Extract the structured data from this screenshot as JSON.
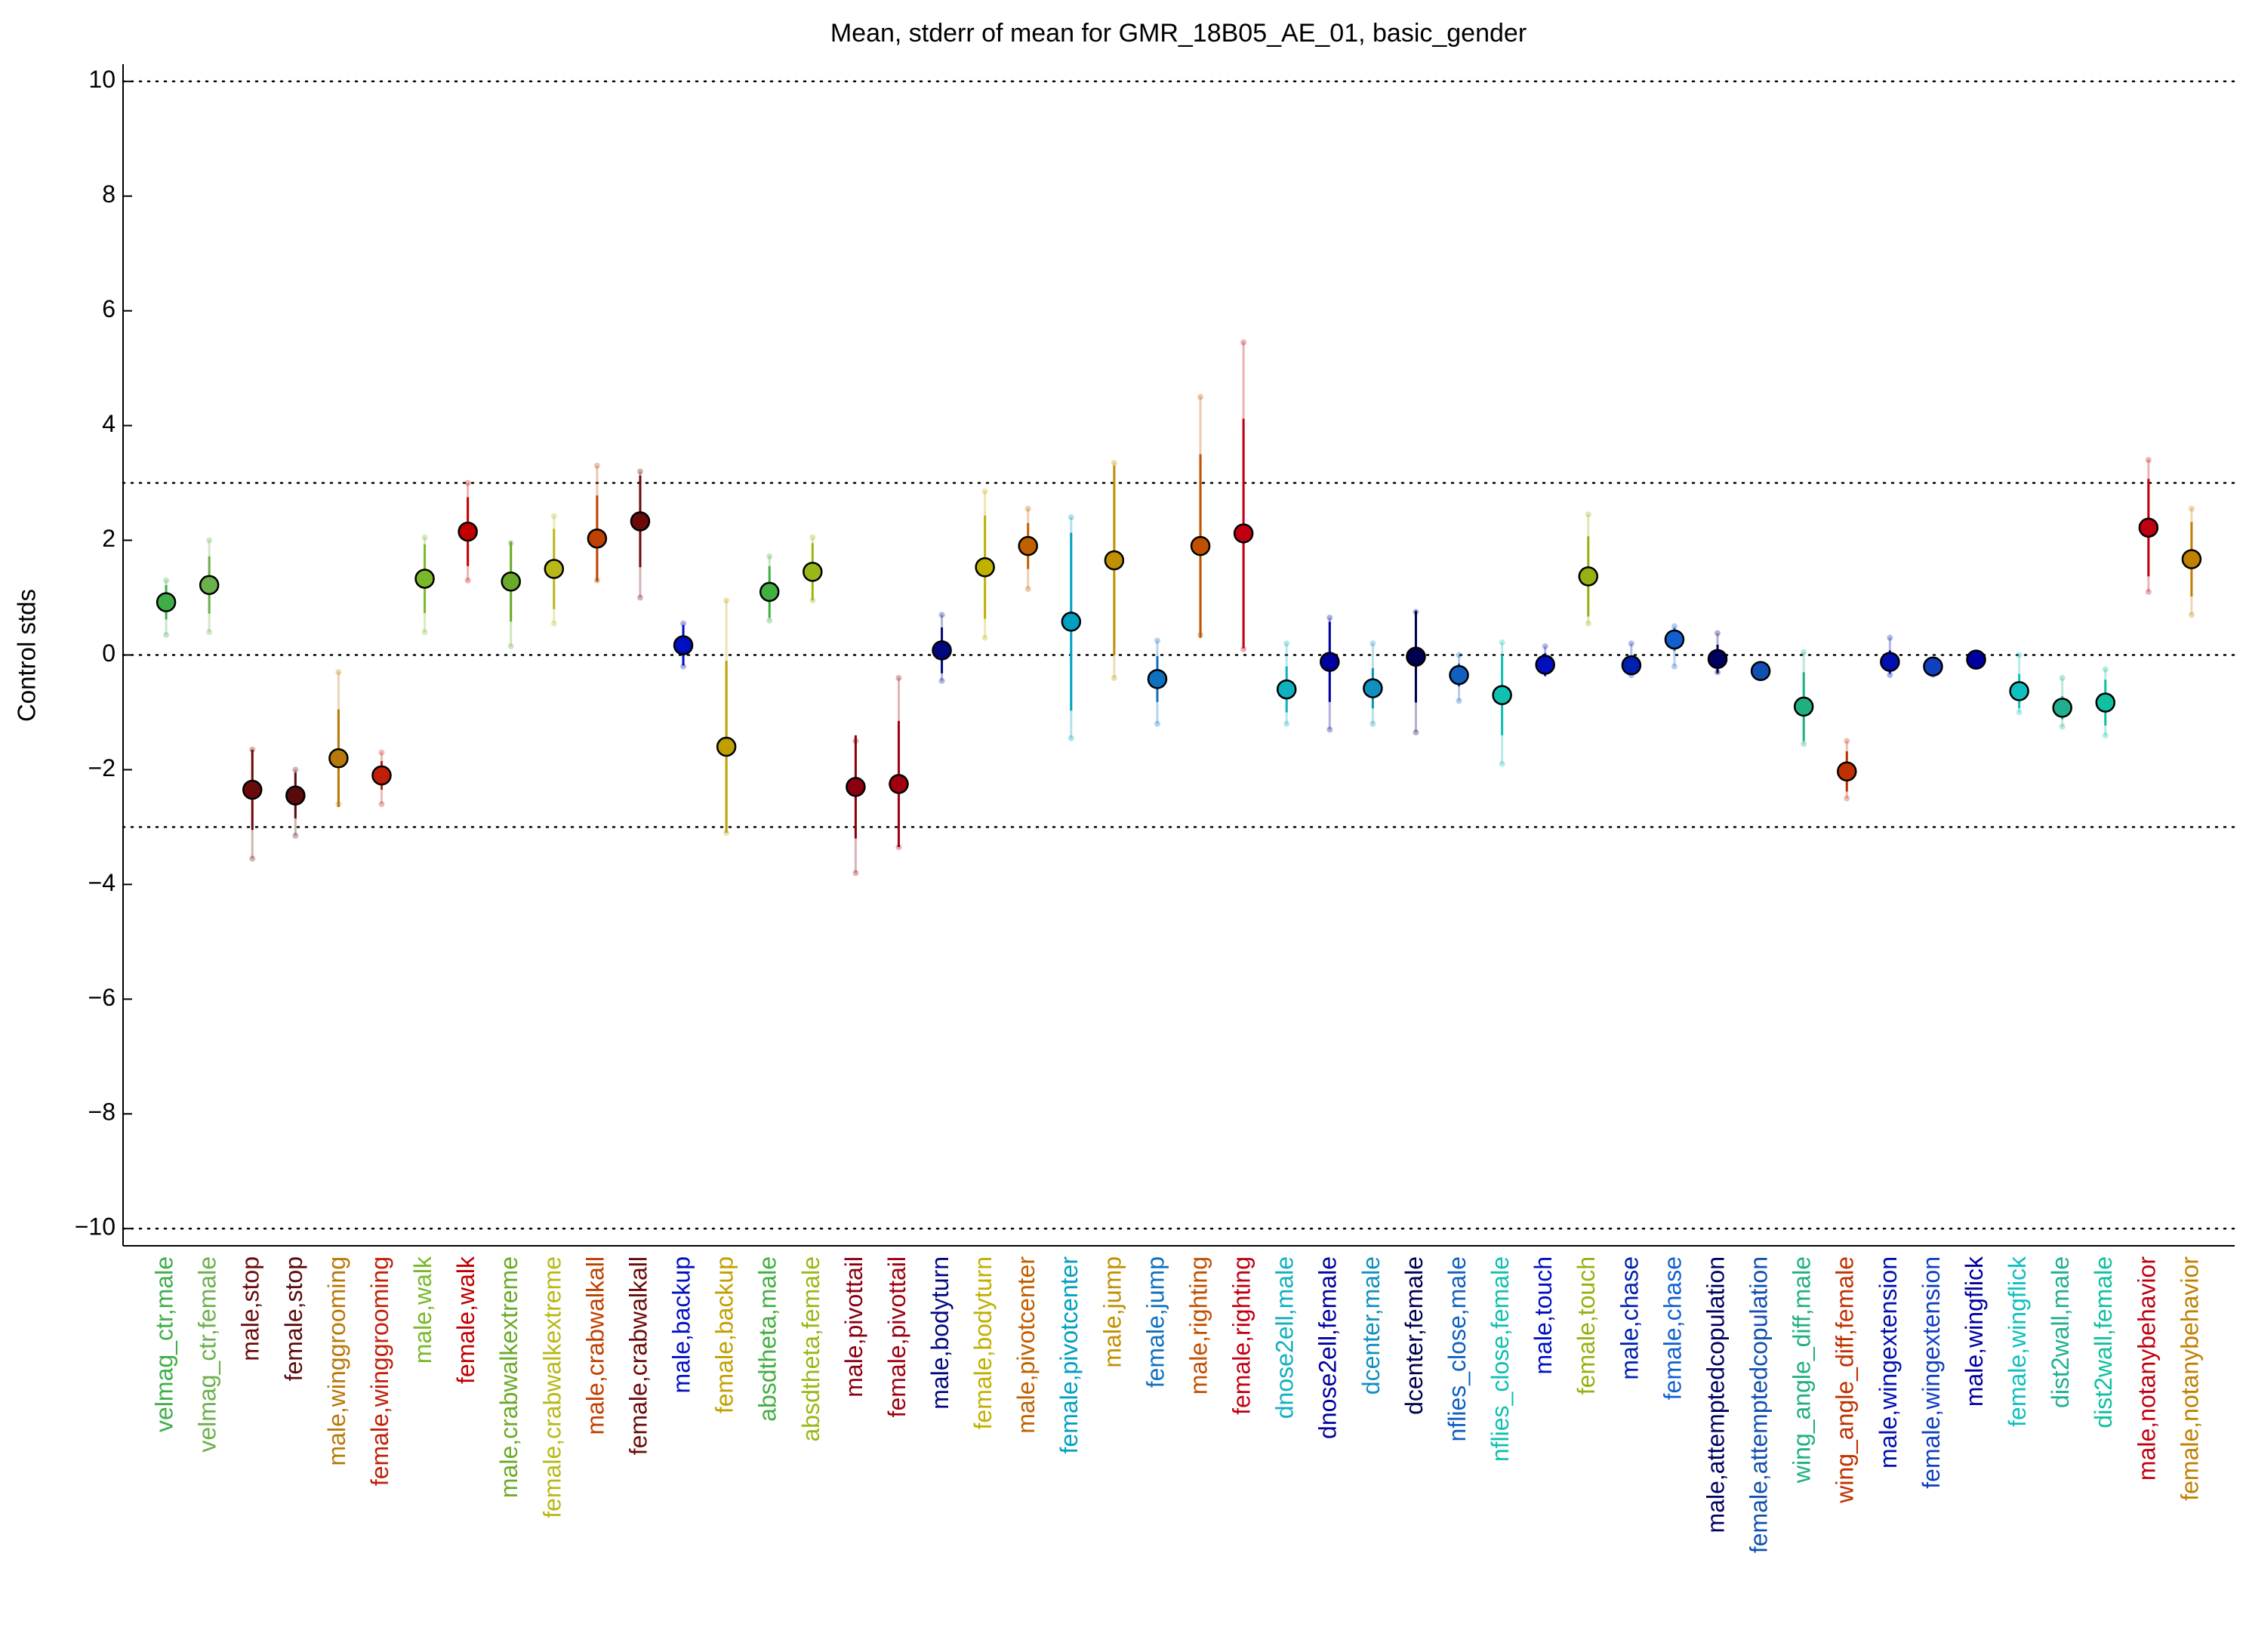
{
  "chart_data": {
    "type": "errorbar",
    "title": "Mean, stderr of mean for GMR_18B05_AE_01, basic_gender",
    "y_label": "Control stds",
    "categories": [
      "velmag_ctr,male",
      "velmag_ctr,female",
      "male,stop",
      "female,stop",
      "male,winggrooming",
      "female,winggrooming",
      "male,walk",
      "female,walk",
      "male,crabwalkextreme",
      "female,crabwalkextreme",
      "male,crabwalkall",
      "female,crabwalkall",
      "male,backup",
      "female,backup",
      "absdtheta,male",
      "absdtheta,female",
      "male,pivottail",
      "female,pivottail",
      "male,bodyturn",
      "female,bodyturn",
      "male,pivotcenter",
      "female,pivotcenter",
      "male,jump",
      "female,jump",
      "male,righting",
      "female,righting",
      "dnose2ell,male",
      "dnose2ell,female",
      "dcenter,male",
      "dcenter,female",
      "nflies_close,male",
      "nflies_close,female",
      "male,touch",
      "female,touch",
      "male,chase",
      "female,chase",
      "male,attemptedcopulation",
      "female,attemptedcopulation",
      "wing_angle_diff,male",
      "wing_angle_diff,female",
      "male,wingextension",
      "female,wingextension",
      "male,wingflick",
      "female,wingflick",
      "dist2wall,male",
      "dist2wall,female",
      "male,notanybehavior",
      "female,notanybehavior"
    ],
    "values": [
      0.92,
      1.22,
      -2.35,
      -2.45,
      -1.8,
      -2.1,
      1.33,
      2.15,
      1.28,
      1.5,
      2.03,
      2.33,
      0.17,
      -1.6,
      1.1,
      1.45,
      -2.3,
      -2.25,
      0.08,
      1.53,
      1.9,
      0.58,
      1.65,
      -0.42,
      1.9,
      2.12,
      -0.6,
      -0.12,
      -0.58,
      -0.03,
      -0.35,
      -0.7,
      -0.17,
      1.37,
      -0.18,
      0.27,
      -0.07,
      -0.28,
      -0.9,
      -2.03,
      -0.12,
      -0.2,
      -0.08,
      -0.63,
      -0.92,
      -0.83,
      2.22,
      1.67
    ],
    "stderr": [
      0.3,
      0.5,
      0.7,
      0.4,
      0.85,
      0.25,
      0.6,
      0.6,
      0.7,
      0.7,
      0.75,
      0.8,
      0.35,
      1.5,
      0.45,
      0.5,
      0.9,
      1.1,
      0.4,
      0.9,
      0.4,
      1.55,
      1.65,
      0.4,
      1.6,
      2.0,
      0.4,
      0.7,
      0.35,
      0.8,
      0.2,
      0.7,
      0.2,
      0.7,
      0.15,
      0.2,
      0.25,
      0.1,
      0.6,
      0.35,
      0.2,
      0.1,
      0.1,
      0.3,
      0.2,
      0.4,
      0.85,
      0.65
    ],
    "range_low": [
      0.35,
      0.4,
      -3.55,
      -3.15,
      -2.6,
      -2.6,
      0.4,
      1.3,
      0.15,
      0.55,
      1.3,
      1.0,
      -0.2,
      -3.1,
      0.6,
      0.95,
      -3.8,
      -3.35,
      -0.45,
      0.3,
      1.15,
      -1.45,
      -0.4,
      -1.2,
      0.35,
      0.1,
      -1.2,
      -1.3,
      -1.2,
      -1.35,
      -0.8,
      -1.9,
      -0.3,
      0.55,
      -0.35,
      -0.2,
      -0.3,
      -0.35,
      -1.55,
      -2.5,
      -0.35,
      -0.35,
      -0.2,
      -1.0,
      -1.25,
      -1.4,
      1.1,
      0.7
    ],
    "range_high": [
      1.3,
      2.0,
      -1.65,
      -2.0,
      -0.3,
      -1.7,
      2.05,
      3.0,
      1.95,
      2.42,
      3.3,
      3.2,
      0.55,
      0.95,
      1.72,
      2.05,
      -1.5,
      -0.4,
      0.7,
      2.85,
      2.55,
      2.4,
      3.35,
      0.25,
      4.5,
      5.45,
      0.2,
      0.65,
      0.2,
      0.75,
      0.0,
      0.22,
      0.15,
      2.45,
      0.2,
      0.5,
      0.38,
      -0.2,
      0.05,
      -1.5,
      0.3,
      -0.1,
      0.0,
      0.0,
      -0.4,
      -0.25,
      3.4,
      2.55
    ],
    "colors": [
      "#3fae49",
      "#6ab04c",
      "#6a0a0a",
      "#5a0a0a",
      "#b8780a",
      "#c0200a",
      "#7ab82a",
      "#c00000",
      "#6aaa2a",
      "#b8b818",
      "#c04000",
      "#6a0a0a",
      "#0010c0",
      "#c0a000",
      "#40b040",
      "#98b818",
      "#8a0010",
      "#a00010",
      "#000880",
      "#c0b000",
      "#c06000",
      "#00a0c0",
      "#c09000",
      "#1070c0",
      "#c05000",
      "#c00010",
      "#10b0c0",
      "#0000a0",
      "#1090c0",
      "#000050",
      "#1060c0",
      "#10c0b0",
      "#0010c0",
      "#98b010",
      "#0020b0",
      "#1060d0",
      "#000060",
      "#1050b0",
      "#20b080",
      "#c03000",
      "#0010b0",
      "#1040c0",
      "#0000a0",
      "#10c0c0",
      "#20b090",
      "#10c0a0",
      "#c00010",
      "#c08000"
    ],
    "ylim": [
      -10.3,
      10.3
    ],
    "yticks": [
      {
        "value": -10,
        "label": "−10"
      },
      {
        "value": -8,
        "label": "−8"
      },
      {
        "value": -6,
        "label": "−6"
      },
      {
        "value": -4,
        "label": "−4"
      },
      {
        "value": -2,
        "label": "−2"
      },
      0,
      2,
      4,
      6,
      8,
      10
    ],
    "hlines": [
      10,
      3,
      0,
      -3,
      -10
    ]
  }
}
